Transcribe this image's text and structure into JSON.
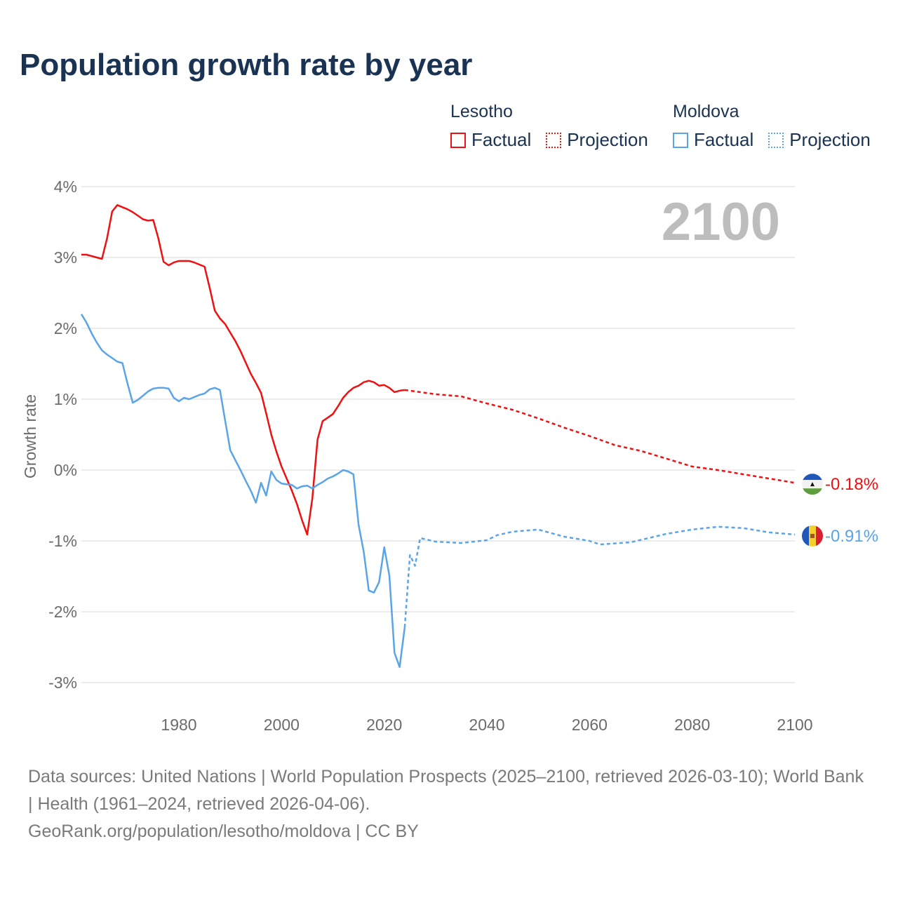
{
  "title": "Population growth rate by year",
  "legend": {
    "groups": [
      {
        "name": "Lesotho",
        "color": "#ee1111",
        "items": [
          "Factual",
          "Projection"
        ]
      },
      {
        "name": "Moldova",
        "color": "#5aa4e8",
        "items": [
          "Factual",
          "Projection"
        ]
      }
    ]
  },
  "year_label": "2100",
  "footer": {
    "sources": "Data sources: United Nations | World Population Prospects (2025–2100, retrieved 2026-03-10); World Bank | Health (1961–2024, retrieved 2026-04-06).",
    "credit": "GeoRank.org/population/lesotho/moldova | CC BY"
  },
  "chart_data": {
    "type": "line",
    "title": "Population growth rate by year",
    "xlabel": "",
    "ylabel": "Growth rate",
    "xlim": [
      1961,
      2100
    ],
    "ylim": [
      -3.3,
      4.1
    ],
    "x_ticks": [
      1980,
      2000,
      2020,
      2040,
      2060,
      2080,
      2100
    ],
    "y_ticks": [
      4,
      3,
      2,
      1,
      0,
      -1,
      -2,
      -3
    ],
    "y_tick_labels": [
      "4%",
      "3%",
      "2%",
      "1%",
      "0%",
      "-1%",
      "-2%",
      "-3%"
    ],
    "grid": true,
    "legend_position": "top-right",
    "series": [
      {
        "name": "Lesotho Factual",
        "color": "#ee1111",
        "style": "solid",
        "x": [
          1961,
          1962,
          1963,
          1964,
          1965,
          1966,
          1967,
          1968,
          1969,
          1970,
          1971,
          1972,
          1973,
          1974,
          1975,
          1976,
          1977,
          1978,
          1979,
          1980,
          1981,
          1982,
          1983,
          1984,
          1985,
          1986,
          1987,
          1988,
          1989,
          1990,
          1991,
          1992,
          1993,
          1994,
          1995,
          1996,
          1997,
          1998,
          1999,
          2000,
          2001,
          2002,
          2003,
          2004,
          2005,
          2006,
          2007,
          2008,
          2009,
          2010,
          2011,
          2012,
          2013,
          2014,
          2015,
          2016,
          2017,
          2018,
          2019,
          2020,
          2021,
          2022,
          2023,
          2024
        ],
        "y": [
          3.04,
          3.04,
          3.02,
          3.0,
          2.98,
          3.27,
          3.65,
          3.74,
          3.71,
          3.68,
          3.64,
          3.59,
          3.54,
          3.52,
          3.53,
          3.27,
          2.94,
          2.89,
          2.93,
          2.95,
          2.95,
          2.95,
          2.93,
          2.9,
          2.87,
          2.57,
          2.25,
          2.14,
          2.06,
          1.94,
          1.82,
          1.68,
          1.52,
          1.36,
          1.23,
          1.09,
          0.8,
          0.5,
          0.26,
          0.05,
          -0.12,
          -0.29,
          -0.48,
          -0.71,
          -0.91,
          -0.4,
          0.43,
          0.69,
          0.74,
          0.79,
          0.9,
          1.02,
          1.1,
          1.16,
          1.19,
          1.24,
          1.26,
          1.24,
          1.19,
          1.2,
          1.16,
          1.1,
          1.12,
          1.13
        ]
      },
      {
        "name": "Lesotho Projection",
        "color": "#ee1111",
        "style": "dotted",
        "x": [
          2024,
          2025,
          2030,
          2035,
          2040,
          2045,
          2050,
          2055,
          2060,
          2065,
          2070,
          2075,
          2080,
          2085,
          2090,
          2095,
          2100
        ],
        "y": [
          1.13,
          1.12,
          1.07,
          1.04,
          0.94,
          0.85,
          0.73,
          0.6,
          0.48,
          0.35,
          0.27,
          0.16,
          0.05,
          0.0,
          -0.06,
          -0.12,
          -0.18
        ]
      },
      {
        "name": "Moldova Factual",
        "color": "#5aa4e8",
        "style": "solid",
        "x": [
          1961,
          1962,
          1963,
          1964,
          1965,
          1966,
          1967,
          1968,
          1969,
          1970,
          1971,
          1972,
          1973,
          1974,
          1975,
          1976,
          1977,
          1978,
          1979,
          1980,
          1981,
          1982,
          1983,
          1984,
          1985,
          1986,
          1987,
          1988,
          1989,
          1990,
          1991,
          1992,
          1993,
          1994,
          1995,
          1996,
          1997,
          1998,
          1999,
          2000,
          2001,
          2002,
          2003,
          2004,
          2005,
          2006,
          2007,
          2008,
          2009,
          2010,
          2011,
          2012,
          2013,
          2014,
          2015,
          2016,
          2017,
          2018,
          2019,
          2020,
          2021,
          2022,
          2023,
          2024
        ],
        "y": [
          2.2,
          2.08,
          1.93,
          1.8,
          1.69,
          1.63,
          1.58,
          1.53,
          1.51,
          1.22,
          0.95,
          0.99,
          1.05,
          1.11,
          1.15,
          1.16,
          1.16,
          1.15,
          1.02,
          0.97,
          1.02,
          1.0,
          1.03,
          1.06,
          1.08,
          1.14,
          1.16,
          1.13,
          0.7,
          0.28,
          0.14,
          0.0,
          -0.15,
          -0.29,
          -0.46,
          -0.18,
          -0.36,
          -0.02,
          -0.14,
          -0.19,
          -0.2,
          -0.21,
          -0.26,
          -0.23,
          -0.22,
          -0.26,
          -0.21,
          -0.17,
          -0.12,
          -0.09,
          -0.05,
          0.0,
          -0.02,
          -0.06,
          -0.77,
          -1.15,
          -1.7,
          -1.73,
          -1.58,
          -1.09,
          -1.49,
          -2.58,
          -2.78,
          -2.22
        ]
      },
      {
        "name": "Moldova Projection",
        "color": "#5aa4e8",
        "style": "dotted",
        "x": [
          2024,
          2025,
          2026,
          2027,
          2030,
          2035,
          2040,
          2042,
          2045,
          2050,
          2055,
          2060,
          2062,
          2068,
          2075,
          2080,
          2085,
          2090,
          2095,
          2100
        ],
        "y": [
          -2.22,
          -1.2,
          -1.35,
          -0.96,
          -1.01,
          -1.03,
          -0.99,
          -0.92,
          -0.87,
          -0.84,
          -0.94,
          -1.0,
          -1.05,
          -1.02,
          -0.9,
          -0.84,
          -0.8,
          -0.82,
          -0.88,
          -0.91
        ]
      }
    ],
    "end_labels": [
      {
        "country": "Lesotho",
        "value": -0.18,
        "text": "-0.18%",
        "color": "#ee1111",
        "icon": "lesotho-flag-icon"
      },
      {
        "country": "Moldova",
        "value": -0.91,
        "text": "-0.91%",
        "color": "#5aa4e8",
        "icon": "moldova-flag-icon"
      }
    ]
  }
}
